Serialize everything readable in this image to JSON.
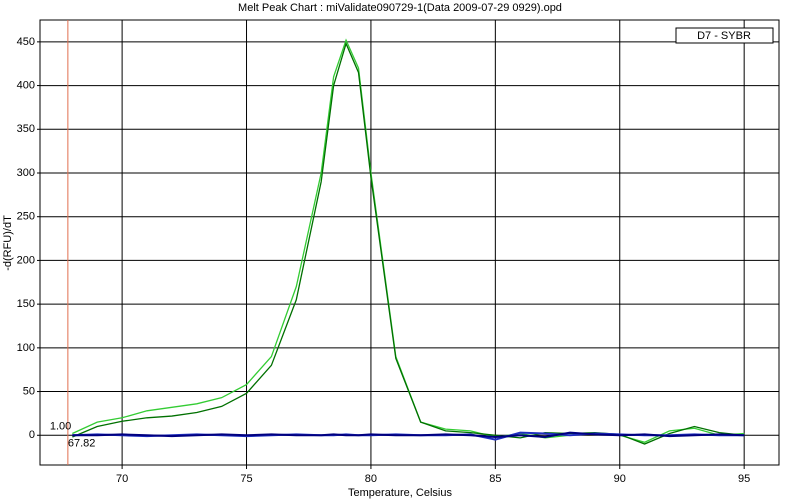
{
  "chart_data": {
    "type": "line",
    "title": "Melt Peak Chart : miValidate090729-1(Data 2009-07-29 0929).opd",
    "x_label": "Temperature, Celsius",
    "y_label": "-d(RFU)/dT",
    "legend": {
      "label": "D7 - SYBR",
      "position": "upper right"
    },
    "xlim": [
      66.7,
      96.4
    ],
    "ylim": [
      -34,
      475
    ],
    "xticks": [
      70,
      75,
      80,
      85,
      90,
      95
    ],
    "yticks": [
      0,
      50,
      100,
      150,
      200,
      250,
      300,
      350,
      400,
      450
    ],
    "grid": true,
    "cursor": {
      "x": 67.82,
      "y": {
        "value": 1,
        "label": "1.00"
      },
      "color": "#e07050"
    },
    "x": [
      68,
      69,
      70,
      71,
      72,
      73,
      74,
      75,
      76,
      77,
      78,
      78.5,
      79,
      79.5,
      80,
      81,
      82,
      83,
      84,
      85,
      86,
      87,
      88,
      89,
      90,
      91,
      92,
      93,
      94,
      95
    ],
    "series": [
      {
        "color": "#33cc33",
        "values": [
          2,
          15,
          20,
          28,
          32,
          36,
          43,
          58,
          90,
          170,
          300,
          410,
          452,
          420,
          300,
          90,
          15,
          7,
          5,
          -2,
          2,
          -3,
          0,
          2,
          0,
          -8,
          5,
          8,
          0,
          2
        ]
      },
      {
        "color": "#007000",
        "values": [
          -2,
          10,
          16,
          20,
          22,
          26,
          33,
          48,
          80,
          155,
          290,
          400,
          448,
          415,
          295,
          88,
          15,
          5,
          3,
          0,
          -3,
          3,
          2,
          3,
          1,
          -10,
          2,
          10,
          3,
          0
        ]
      },
      {
        "color": "#2030c0",
        "values": [
          0,
          1,
          0,
          -1,
          0,
          1,
          0,
          -1,
          0,
          1,
          0,
          0,
          1,
          0,
          0,
          1,
          0,
          0,
          1,
          -5,
          3,
          2,
          0,
          2,
          1,
          0,
          0,
          1,
          0,
          0
        ]
      },
      {
        "color": "#000080",
        "values": [
          0,
          0,
          1,
          0,
          -1,
          0,
          1,
          0,
          1,
          0,
          0,
          1,
          0,
          0,
          1,
          0,
          0,
          1,
          0,
          -2,
          0,
          -2,
          3,
          1,
          0,
          1,
          -1,
          0,
          1,
          0
        ]
      }
    ]
  }
}
